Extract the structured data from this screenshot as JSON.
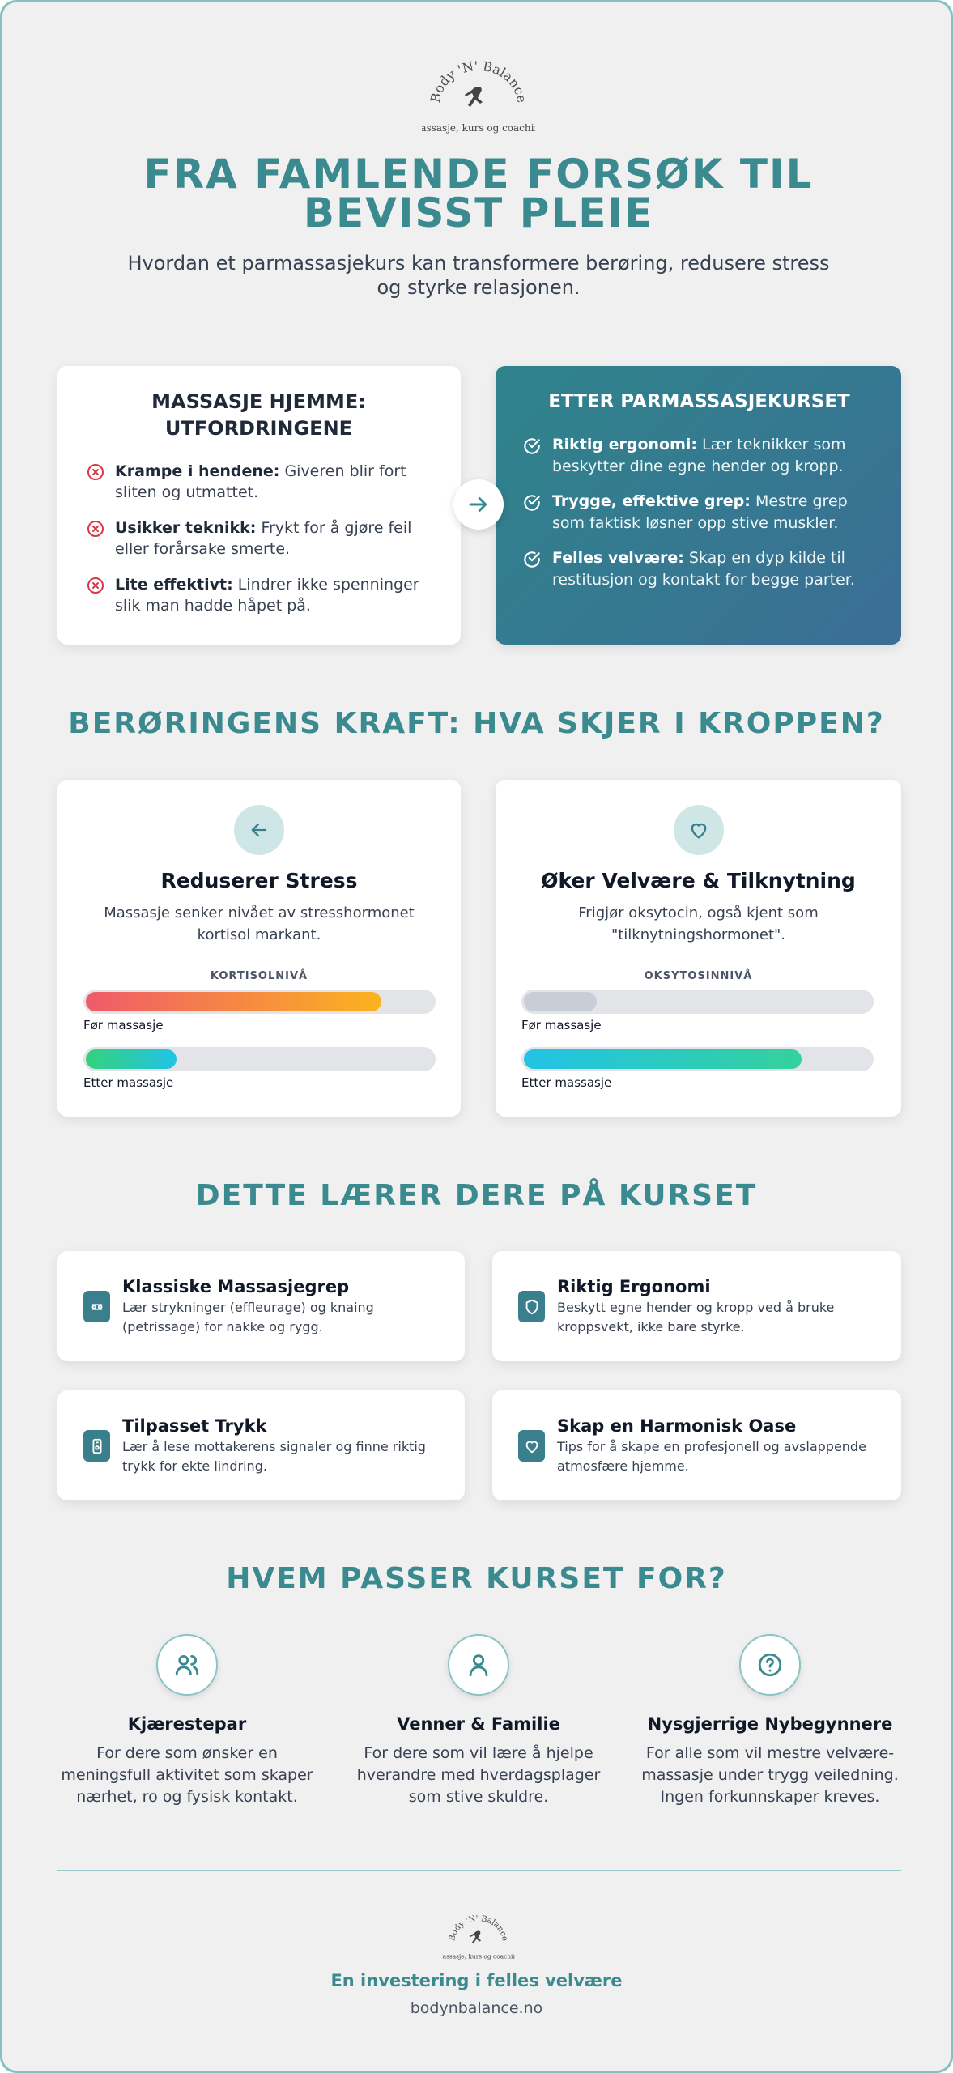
{
  "header": {
    "logo_name": "Body 'N' Balance",
    "logo_tagline": "Massasje, kurs og coaching",
    "title": "FRA FAMLENDE FORSØK TIL BEVISST PLEIE",
    "subtitle": "Hvordan et parmassasjekurs kan transformere berøring, redusere stress og styrke relasjonen."
  },
  "comparison": {
    "before": {
      "title": "MASSASJE HJEMME: UTFORDRINGENE",
      "items": [
        {
          "label": "Krampe i hendene:",
          "text": "Giveren blir fort sliten og utmattet."
        },
        {
          "label": "Usikker teknikk:",
          "text": "Frykt for å gjøre feil eller forårsake smerte."
        },
        {
          "label": "Lite effektivt:",
          "text": "Lindrer ikke spenninger slik man hadde håpet på."
        }
      ]
    },
    "after": {
      "title": "ETTER PARMASSASJEKURSET",
      "items": [
        {
          "label": "Riktig ergonomi:",
          "text": "Lær teknikker som beskytter dine egne hender og kropp."
        },
        {
          "label": "Trygge, effektive grep:",
          "text": "Mestre grep som faktisk løsner opp stive muskler."
        },
        {
          "label": "Felles velvære:",
          "text": "Skap en dyp kilde til restitusjon og kontakt for begge parter."
        }
      ]
    }
  },
  "effects": {
    "title": "BERØRINGENS KRAFT: HVA SKJER I KROPPEN?",
    "cards": [
      {
        "title": "Reduserer Stress",
        "text": "Massasje senker nivået av stresshormonet kortisol markant.",
        "meter": "KORTISOLNIVÅ",
        "bars": [
          {
            "label": "Før massasje",
            "level": 85
          },
          {
            "label": "Etter massasje",
            "level": 26
          }
        ]
      },
      {
        "title": "Øker Velvære & Tilknytning",
        "text": "Frigjør oksytocin, også kjent som \"tilknytningshormonet\".",
        "meter": "OKSYTOSINNIVÅ",
        "bars": [
          {
            "label": "Før massasje",
            "level": 21
          },
          {
            "label": "Etter massasje",
            "level": 80
          }
        ]
      }
    ]
  },
  "course": {
    "title": "DETTE LÆRER DERE PÅ KURSET",
    "items": [
      {
        "title": "Klassiske Massasjegrep",
        "text": "Lær strykninger (effleurage) og knaing (petrissage) for nakke og rygg."
      },
      {
        "title": "Riktig Ergonomi",
        "text": "Beskytt egne hender og kropp ved å bruke kroppsvekt, ikke bare styrke."
      },
      {
        "title": "Tilpasset Trykk",
        "text": "Lær å lese mottakerens signaler og finne riktig trykk for ekte lindring."
      },
      {
        "title": "Skap en Harmonisk Oase",
        "text": "Tips for å skape en profesjonell og avslappende atmosfære hjemme."
      }
    ]
  },
  "audience": {
    "title": "HVEM PASSER KURSET FOR?",
    "groups": [
      {
        "title": "Kjærestepar",
        "text": "For dere som ønsker en meningsfull aktivitet som skaper nærhet, ro og fysisk kontakt."
      },
      {
        "title": "Venner & Familie",
        "text": "For dere som vil lære å hjelpe hverandre med hverdagsplager som stive skuldre."
      },
      {
        "title": "Nysgjerrige Nybegynnere",
        "text": "For alle som vil mestre velvære-massasje under trygg veiledning. Ingen forkunnskaper kreves."
      }
    ]
  },
  "footer": {
    "logo_name": "Body 'N' Balance",
    "logo_tagline": "Massasje, kurs og coaching",
    "slogan": "En investering i felles velvære",
    "url": "bodynbalance.no"
  }
}
